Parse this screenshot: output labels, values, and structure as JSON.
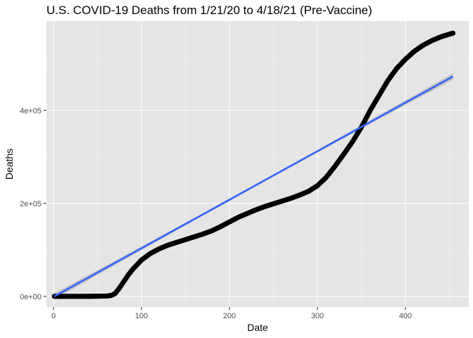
{
  "chart_data": {
    "type": "scatter",
    "title": "U.S. COVID-19 Deaths from 1/21/20 to 4/18/21 (Pre-Vaccine)",
    "xlabel": "Date",
    "ylabel": "Deaths",
    "xlim": [
      -8,
      472
    ],
    "ylim": [
      -23000,
      592000
    ],
    "x_ticks": [
      0,
      100,
      200,
      300,
      400
    ],
    "x_tick_labels": [
      "0",
      "100",
      "200",
      "300",
      "400"
    ],
    "y_ticks": [
      0,
      200000,
      400000
    ],
    "y_tick_labels": [
      "0e+00",
      "2e+05",
      "4e+05"
    ],
    "grid": true,
    "legend": "none",
    "series": [
      {
        "points": [
          [
            1,
            0
          ],
          [
            40,
            0
          ],
          [
            60,
            500
          ],
          [
            66,
            2000
          ],
          [
            70,
            6000
          ],
          [
            75,
            18000
          ],
          [
            80,
            32000
          ],
          [
            85,
            46000
          ],
          [
            90,
            58000
          ],
          [
            100,
            78000
          ],
          [
            110,
            92000
          ],
          [
            120,
            102000
          ],
          [
            130,
            110000
          ],
          [
            140,
            116000
          ],
          [
            150,
            122000
          ],
          [
            160,
            128000
          ],
          [
            170,
            134000
          ],
          [
            180,
            141000
          ],
          [
            190,
            150000
          ],
          [
            200,
            160000
          ],
          [
            210,
            170000
          ],
          [
            220,
            178000
          ],
          [
            230,
            186000
          ],
          [
            240,
            193000
          ],
          [
            250,
            199000
          ],
          [
            260,
            205000
          ],
          [
            270,
            211000
          ],
          [
            280,
            218000
          ],
          [
            290,
            226000
          ],
          [
            300,
            238000
          ],
          [
            310,
            256000
          ],
          [
            320,
            280000
          ],
          [
            330,
            306000
          ],
          [
            340,
            333000
          ],
          [
            350,
            364000
          ],
          [
            360,
            400000
          ],
          [
            370,
            432000
          ],
          [
            380,
            464000
          ],
          [
            390,
            490000
          ],
          [
            400,
            510000
          ],
          [
            410,
            527000
          ],
          [
            420,
            540000
          ],
          [
            430,
            550000
          ],
          [
            440,
            558000
          ],
          [
            450,
            564000
          ],
          [
            454,
            566000
          ]
        ],
        "marker_color": "#000000"
      }
    ],
    "trend_line": {
      "type": "linear fit",
      "x": [
        1,
        454
      ],
      "y": [
        0,
        473000
      ],
      "band_halfwidth": 7000,
      "color": "#3366ff",
      "band_color": "#bdbdbd"
    },
    "colors": {
      "panel_background": "#e5e5e5",
      "grid": "#ffffff",
      "points": "#000000",
      "fit_line": "#3366ff"
    }
  }
}
